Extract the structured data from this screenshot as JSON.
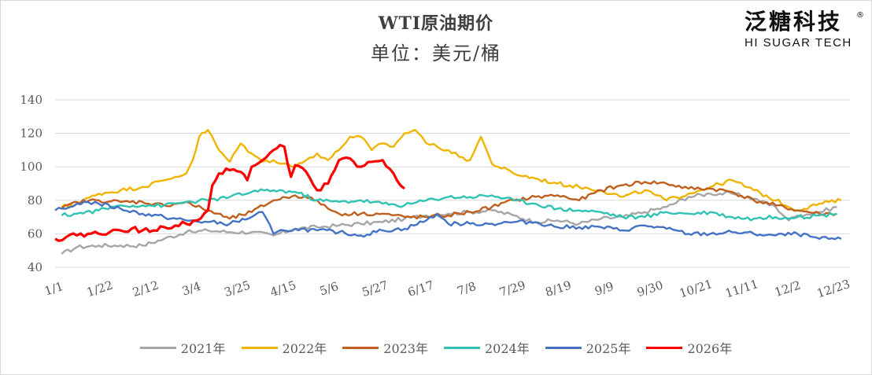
{
  "chart_data": {
    "type": "line",
    "title": "WTI原油期价",
    "subtitle": "单位：美元/桶",
    "ylim": [
      40,
      140
    ],
    "yticks": [
      40,
      60,
      80,
      100,
      120,
      140
    ],
    "xlim": [
      0,
      364
    ],
    "x_tick_labels": [
      "1/1",
      "1/22",
      "2/12",
      "3/4",
      "3/25",
      "4/15",
      "5/6",
      "5/27",
      "6/17",
      "7/8",
      "7/29",
      "8/19",
      "9/9",
      "9/30",
      "10/21",
      "11/11",
      "12/2",
      "12/23"
    ],
    "x_tick_days": [
      0,
      21,
      42,
      63,
      84,
      105,
      126,
      147,
      168,
      189,
      210,
      231,
      252,
      273,
      294,
      315,
      336,
      357
    ],
    "grid": true,
    "legend_position": "bottom",
    "series": [
      {
        "name": "2021年",
        "color": "#a6a6a6",
        "x": [
          3,
          10,
          20,
          30,
          40,
          50,
          60,
          63,
          70,
          80,
          90,
          100,
          110,
          120,
          130,
          140,
          150,
          160,
          170,
          180,
          190,
          200,
          210,
          220,
          230,
          240,
          250,
          260,
          270,
          280,
          290,
          300,
          310,
          320,
          330,
          336,
          340,
          350,
          358
        ],
        "y": [
          48,
          52,
          53,
          53,
          53,
          57,
          61,
          61,
          62,
          61,
          61,
          59,
          63,
          64,
          65,
          66,
          67,
          69,
          71,
          72,
          73,
          74,
          71,
          67,
          68,
          66,
          69,
          70,
          73,
          76,
          82,
          84,
          84,
          81,
          76,
          68,
          71,
          73,
          76
        ]
      },
      {
        "name": "2022年",
        "color": "#f0b400",
        "x": [
          3,
          10,
          20,
          30,
          40,
          50,
          55,
          60,
          63,
          66,
          70,
          75,
          80,
          85,
          90,
          95,
          100,
          105,
          110,
          115,
          120,
          125,
          130,
          135,
          140,
          145,
          150,
          155,
          160,
          165,
          168,
          170,
          175,
          180,
          185,
          190,
          195,
          200,
          210,
          220,
          230,
          240,
          250,
          260,
          270,
          280,
          290,
          300,
          310,
          320,
          330,
          340,
          350,
          360
        ],
        "y": [
          76,
          78,
          84,
          86,
          88,
          92,
          94,
          96,
          104,
          118,
          122,
          110,
          103,
          114,
          108,
          103,
          104,
          102,
          100,
          104,
          108,
          104,
          110,
          118,
          118,
          110,
          114,
          112,
          120,
          122,
          118,
          114,
          112,
          110,
          106,
          104,
          118,
          102,
          96,
          93,
          90,
          88,
          86,
          82,
          86,
          80,
          84,
          88,
          92,
          86,
          80,
          74,
          78,
          80
        ]
      },
      {
        "name": "2023年",
        "color": "#c0601e",
        "x": [
          3,
          10,
          20,
          30,
          40,
          50,
          60,
          63,
          70,
          80,
          90,
          100,
          110,
          120,
          125,
          130,
          140,
          150,
          160,
          170,
          180,
          190,
          200,
          210,
          220,
          230,
          240,
          250,
          260,
          270,
          280,
          290,
          300,
          310,
          320,
          330,
          340,
          350,
          358
        ],
        "y": [
          75,
          79,
          80,
          79,
          79,
          77,
          79,
          77,
          74,
          69,
          73,
          80,
          83,
          80,
          75,
          72,
          72,
          72,
          70,
          70,
          71,
          73,
          76,
          80,
          82,
          83,
          80,
          86,
          89,
          91,
          90,
          87,
          87,
          85,
          80,
          77,
          74,
          72,
          72
        ]
      },
      {
        "name": "2024年",
        "color": "#30c3b4",
        "x": [
          3,
          10,
          20,
          30,
          40,
          50,
          60,
          70,
          80,
          90,
          100,
          110,
          120,
          130,
          140,
          150,
          160,
          170,
          180,
          190,
          200,
          210,
          220,
          230,
          240,
          250,
          260,
          270,
          280,
          290,
          300,
          310,
          320,
          330,
          340,
          350,
          358
        ],
        "y": [
          71,
          72,
          74,
          77,
          77,
          77,
          79,
          80,
          82,
          85,
          86,
          85,
          80,
          79,
          80,
          78,
          77,
          80,
          82,
          82,
          83,
          80,
          78,
          75,
          74,
          73,
          70,
          70,
          73,
          72,
          73,
          70,
          69,
          70,
          70,
          71,
          72
        ]
      },
      {
        "name": "2025年",
        "color": "#4472c4",
        "x": [
          0,
          5,
          10,
          15,
          20,
          30,
          40,
          50,
          60,
          70,
          80,
          90,
          95,
          100,
          105,
          110,
          120,
          130,
          140,
          150,
          160,
          170,
          175,
          180,
          190,
          200,
          210,
          220,
          230,
          240,
          250,
          260,
          270,
          280,
          290,
          300,
          310,
          320,
          330,
          340,
          350,
          360
        ],
        "y": [
          74,
          75,
          78,
          79,
          78,
          75,
          72,
          70,
          68,
          67,
          66,
          70,
          73,
          60,
          62,
          63,
          62,
          61,
          59,
          62,
          63,
          68,
          72,
          66,
          66,
          66,
          67,
          67,
          64,
          64,
          64,
          62,
          65,
          63,
          60,
          60,
          61,
          60,
          59,
          60,
          57,
          57
        ]
      },
      {
        "name": "2026年",
        "color": "#ff0000",
        "x": [
          0,
          5,
          10,
          15,
          20,
          25,
          30,
          35,
          40,
          45,
          50,
          55,
          60,
          65,
          70,
          72,
          75,
          80,
          85,
          88,
          90,
          95,
          100,
          103,
          105,
          108,
          110,
          115,
          120,
          125,
          128,
          130,
          135,
          140,
          145,
          150,
          155,
          160
        ],
        "y": [
          57,
          58,
          59,
          60,
          60,
          61,
          62,
          63,
          62,
          62,
          64,
          65,
          66,
          68,
          74,
          89,
          96,
          98,
          97,
          92,
          100,
          104,
          110,
          113,
          112,
          94,
          101,
          97,
          86,
          90,
          98,
          104,
          105,
          100,
          103,
          104,
          96,
          87
        ]
      }
    ]
  }
}
